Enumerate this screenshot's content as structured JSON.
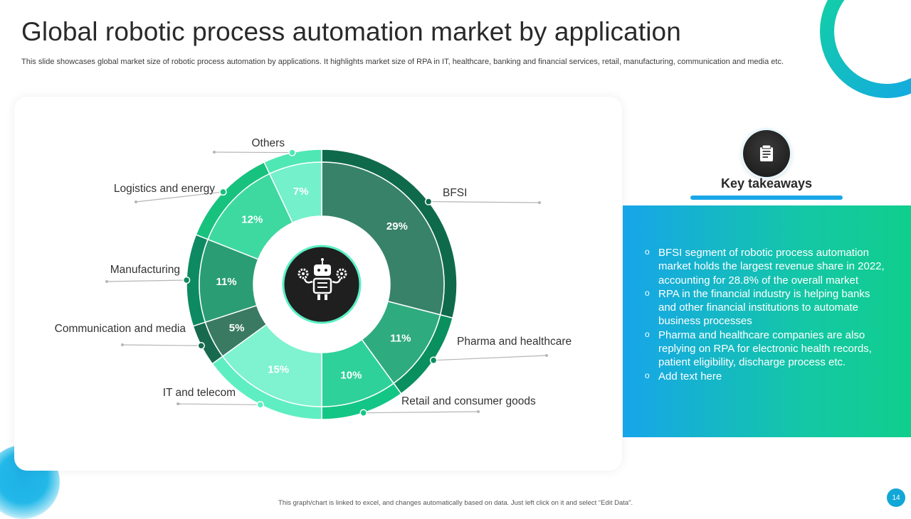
{
  "slide": {
    "title": "Global robotic process automation market by application",
    "subtitle": "This slide showcases global market size of robotic process automation by applications. It highlights market size of RPA in IT, healthcare, banking and financial services, retail, manufacturing, communication and media etc.",
    "footer": "This graph/chart is linked to excel, and changes automatically based on data. Just left click on it and select “Edit Data”.",
    "page_number": "14"
  },
  "center_icon": "robot-with-gears-icon",
  "takeaways": {
    "icon": "notes-icon",
    "title": "Key takeaways",
    "items": [
      "BFSI segment of robotic process automation market holds the largest revenue share in 2022, accounting for 28.8% of the overall market",
      "RPA in the financial industry is helping banks and other financial institutions to automate business processes",
      "Pharma and healthcare companies are also replying on RPA for electronic health records, patient eligibility, discharge process etc.",
      "Add text here"
    ]
  },
  "chart_data": {
    "type": "pie",
    "style": "donut",
    "categories": [
      "BFSI",
      "Pharma and healthcare",
      "Retail and consumer goods",
      "IT and telecom",
      "Communication and media",
      "Manufacturing",
      "Logistics and energy",
      "Others"
    ],
    "values": [
      29,
      11,
      10,
      15,
      5,
      11,
      12,
      7
    ],
    "labels": [
      "29%",
      "11%",
      "10%",
      "15%",
      "5%",
      "11%",
      "12%",
      "7%"
    ],
    "colors": {
      "inner": [
        "#38826a",
        "#2fab80",
        "#2ed19a",
        "#7ff2cf",
        "#3a7a63",
        "#2b9d74",
        "#3ed9a0",
        "#74f0cb"
      ],
      "outer": [
        "#0f6a4c",
        "#0a8f5e",
        "#14c685",
        "#5eeec1",
        "#186a4f",
        "#0e8a62",
        "#17c27e",
        "#4fe7b3"
      ]
    },
    "legend": "callout labels"
  }
}
